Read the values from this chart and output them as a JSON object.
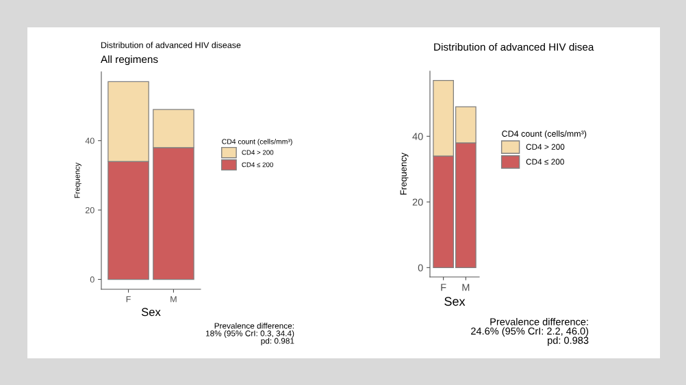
{
  "chart_data": [
    {
      "type": "bar",
      "title": "Distribution of advanced HIV disease",
      "subtitle": "All regimens",
      "xlabel": "Sex",
      "ylabel": "Frequency",
      "legend_title": "CD4 count (cells/mm³)",
      "categories": [
        "F",
        "M"
      ],
      "stacked": true,
      "series": [
        {
          "name": "CD4 ≤ 200",
          "color": "#cd5c5c",
          "values": [
            34,
            38
          ]
        },
        {
          "name": "CD4 > 200",
          "color": "#f5dbaa",
          "values": [
            23,
            11
          ]
        }
      ],
      "ylim": [
        -2.85,
        59.85
      ],
      "yticks": [
        0,
        20,
        40
      ],
      "grid": false,
      "legend": "right",
      "annotations": [
        "Prevalence difference:\n18% (95% CrI: 0.3, 34.4)\npd: 0.981"
      ]
    },
    {
      "type": "bar",
      "title": "Distribution of advanced HIV disea",
      "xlabel": "Sex",
      "ylabel": "Frequency",
      "legend_title": "CD4 count (cells/mm³)",
      "categories": [
        "F",
        "M"
      ],
      "stacked": true,
      "series": [
        {
          "name": "CD4 ≤ 200",
          "color": "#cd5c5c",
          "values": [
            34,
            38
          ]
        },
        {
          "name": "CD4 > 200",
          "color": "#f5dbaa",
          "values": [
            23,
            11
          ]
        }
      ],
      "ylim": [
        -2.85,
        59.85
      ],
      "yticks": [
        0,
        20,
        40
      ],
      "grid": false,
      "legend": "right",
      "annotations": [
        "Prevalence difference:\n24.6% (95% CrI: 2.2, 46.0)\npd: 0.983"
      ]
    }
  ]
}
